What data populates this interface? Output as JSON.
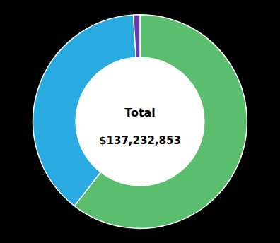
{
  "chart_data": {
    "type": "donut",
    "values": [
      60.5,
      38.5,
      1.0
    ],
    "colors": [
      "#5BBD6E",
      "#29ABE2",
      "#6A3BAF"
    ],
    "annotations": [
      "Total",
      "$137,232,853"
    ]
  }
}
